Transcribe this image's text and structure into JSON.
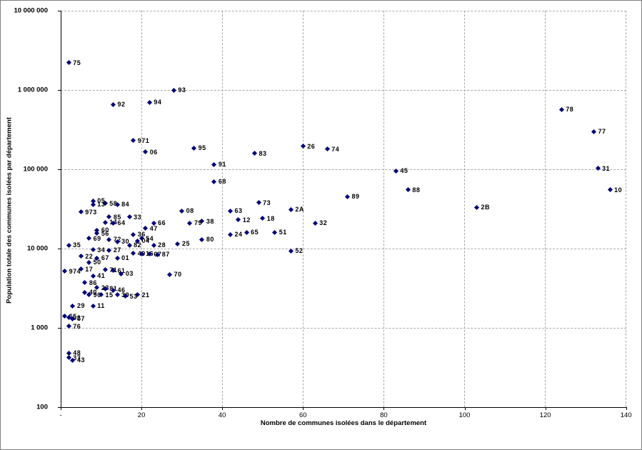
{
  "chart_data": {
    "type": "scatter",
    "title": "",
    "xlabel": "Nombre de communes isolées dans le département",
    "ylabel": "Population totale des communes isolées par département",
    "xlim": [
      0,
      140
    ],
    "ylim": [
      100,
      10000000
    ],
    "y_scale": "log",
    "grid": "on",
    "legend": "none",
    "marker": "diamond",
    "marker_color": "#000080",
    "x_ticks": {
      "values": [
        0,
        20,
        40,
        60,
        80,
        100,
        120,
        140
      ],
      "labels": [
        "-",
        "20",
        "40",
        "60",
        "80",
        "100",
        "120",
        "140"
      ]
    },
    "y_ticks": {
      "values": [
        100,
        1000,
        10000,
        100000,
        1000000,
        10000000
      ],
      "labels": [
        "100",
        "1 000",
        "10 000",
        "100 000",
        "1 000 000",
        "10 000 000"
      ]
    },
    "points": [
      {
        "label": "75",
        "x": 2,
        "y": 2200000
      },
      {
        "label": "93",
        "x": 28,
        "y": 990000
      },
      {
        "label": "94",
        "x": 22,
        "y": 700000
      },
      {
        "label": "92",
        "x": 13,
        "y": 660000
      },
      {
        "label": "78",
        "x": 124,
        "y": 570000
      },
      {
        "label": "77",
        "x": 132,
        "y": 300000
      },
      {
        "label": "971",
        "x": 18,
        "y": 230000
      },
      {
        "label": "26",
        "x": 60,
        "y": 195000
      },
      {
        "label": "95",
        "x": 33,
        "y": 185000
      },
      {
        "label": "74",
        "x": 66,
        "y": 180000
      },
      {
        "label": "06",
        "x": 21,
        "y": 165000
      },
      {
        "label": "83",
        "x": 48,
        "y": 158000
      },
      {
        "label": "91",
        "x": 38,
        "y": 115000
      },
      {
        "label": "31",
        "x": 133,
        "y": 103000
      },
      {
        "label": "45",
        "x": 83,
        "y": 95000
      },
      {
        "label": "68",
        "x": 38,
        "y": 70000
      },
      {
        "label": "88",
        "x": 86,
        "y": 55000
      },
      {
        "label": "10",
        "x": 136,
        "y": 55000
      },
      {
        "label": "89",
        "x": 71,
        "y": 45000
      },
      {
        "label": "05",
        "x": 8,
        "y": 40000
      },
      {
        "label": "73",
        "x": 49,
        "y": 38000
      },
      {
        "label": "58",
        "x": 11,
        "y": 37000
      },
      {
        "label": "84",
        "x": 14,
        "y": 36000
      },
      {
        "label": "13",
        "x": 8,
        "y": 36000
      },
      {
        "label": "2B",
        "x": 103,
        "y": 33000
      },
      {
        "label": "2A",
        "x": 57,
        "y": 31000
      },
      {
        "label": "08",
        "x": 30,
        "y": 30000
      },
      {
        "label": "63",
        "x": 42,
        "y": 30000
      },
      {
        "label": "973",
        "x": 5,
        "y": 29000
      },
      {
        "label": "85",
        "x": 12,
        "y": 25000
      },
      {
        "label": "33",
        "x": 17,
        "y": 25000
      },
      {
        "label": "18",
        "x": 50,
        "y": 24000
      },
      {
        "label": "12",
        "x": 44,
        "y": 23000
      },
      {
        "label": "38",
        "x": 35,
        "y": 22000
      },
      {
        "label": "14",
        "x": 11,
        "y": 21500
      },
      {
        "label": "64",
        "x": 13,
        "y": 21000
      },
      {
        "label": "66",
        "x": 23,
        "y": 21000
      },
      {
        "label": "79",
        "x": 32,
        "y": 21000
      },
      {
        "label": "32",
        "x": 63,
        "y": 21000
      },
      {
        "label": "47",
        "x": 21,
        "y": 18000
      },
      {
        "label": "60",
        "x": 9,
        "y": 17000
      },
      {
        "label": "65",
        "x": 46,
        "y": 16000
      },
      {
        "label": "51",
        "x": 53,
        "y": 16000
      },
      {
        "label": "56",
        "x": 9,
        "y": 15500
      },
      {
        "label": "36",
        "x": 18,
        "y": 15000
      },
      {
        "label": "24",
        "x": 42,
        "y": 15000
      },
      {
        "label": "69",
        "x": 7,
        "y": 13500
      },
      {
        "label": "54",
        "x": 20,
        "y": 13500
      },
      {
        "label": "72",
        "x": 12,
        "y": 13000
      },
      {
        "label": "80",
        "x": 35,
        "y": 13000
      },
      {
        "label": "04",
        "x": 19,
        "y": 12500
      },
      {
        "label": "30",
        "x": 14,
        "y": 12300
      },
      {
        "label": "25",
        "x": 29,
        "y": 11500
      },
      {
        "label": "35",
        "x": 2,
        "y": 11000
      },
      {
        "label": "82",
        "x": 17,
        "y": 11000
      },
      {
        "label": "28",
        "x": 23,
        "y": 11000
      },
      {
        "label": "34",
        "x": 8,
        "y": 9600
      },
      {
        "label": "27",
        "x": 12,
        "y": 9500
      },
      {
        "label": "52",
        "x": 57,
        "y": 9300
      },
      {
        "label": "49",
        "x": 18,
        "y": 8700
      },
      {
        "label": "16",
        "x": 20,
        "y": 8600
      },
      {
        "label": "07",
        "x": 22,
        "y": 8500
      },
      {
        "label": "87",
        "x": 24,
        "y": 8400
      },
      {
        "label": "22",
        "x": 5,
        "y": 8000
      },
      {
        "label": "67",
        "x": 9,
        "y": 7600
      },
      {
        "label": "01",
        "x": 14,
        "y": 7600
      },
      {
        "label": "50",
        "x": 7,
        "y": 6700
      },
      {
        "label": "17",
        "x": 5,
        "y": 5500
      },
      {
        "label": "71",
        "x": 11,
        "y": 5400
      },
      {
        "label": "61",
        "x": 13,
        "y": 5300
      },
      {
        "label": "974",
        "x": 1,
        "y": 5200
      },
      {
        "label": "03",
        "x": 15,
        "y": 4800
      },
      {
        "label": "70",
        "x": 27,
        "y": 4700
      },
      {
        "label": "41",
        "x": 8,
        "y": 4500
      },
      {
        "label": "86",
        "x": 6,
        "y": 3700
      },
      {
        "label": "23",
        "x": 9,
        "y": 3200
      },
      {
        "label": "81",
        "x": 11,
        "y": 3100
      },
      {
        "label": "46",
        "x": 13,
        "y": 3000
      },
      {
        "label": "40",
        "x": 6,
        "y": 2800
      },
      {
        "label": "90",
        "x": 7,
        "y": 2600
      },
      {
        "label": "15",
        "x": 10,
        "y": 2600
      },
      {
        "label": "39",
        "x": 14,
        "y": 2600
      },
      {
        "label": "21",
        "x": 19,
        "y": 2600
      },
      {
        "label": "53",
        "x": 16,
        "y": 2500
      },
      {
        "label": "29",
        "x": 3,
        "y": 1900
      },
      {
        "label": "11",
        "x": 8,
        "y": 1900
      },
      {
        "label": "55",
        "x": 1,
        "y": 1400
      },
      {
        "label": "02",
        "x": 2,
        "y": 1350
      },
      {
        "label": "57",
        "x": 3,
        "y": 1300
      },
      {
        "label": "76",
        "x": 2,
        "y": 1050
      },
      {
        "label": "48",
        "x": 2,
        "y": 480
      },
      {
        "label": "37",
        "x": 2,
        "y": 420
      },
      {
        "label": "43",
        "x": 3,
        "y": 390
      }
    ]
  }
}
